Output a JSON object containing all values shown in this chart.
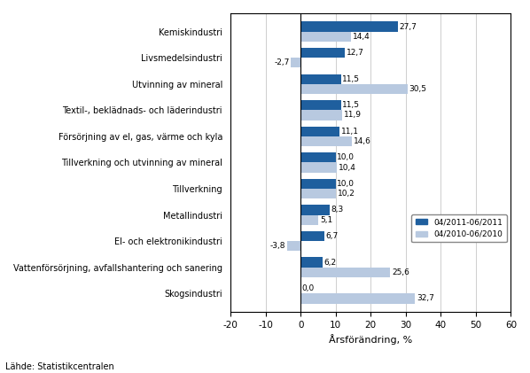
{
  "categories": [
    "Kemiskindustri",
    "Livsmedelsindustri",
    "Utvinning av mineral",
    "Textil-, beklädnads- och läderindustri",
    "Försörjning av el, gas, värme och kyla",
    "Tillverkning och utvinning av mineral",
    "Tillverkning",
    "Metallindustri",
    "El- och elektronikindustri",
    "Vattenförsörjning, avfallshantering och sanering",
    "Skogsindustri"
  ],
  "values_2011": [
    27.7,
    12.7,
    11.5,
    11.5,
    11.1,
    10.0,
    10.0,
    8.3,
    6.7,
    6.2,
    0.0
  ],
  "values_2010": [
    14.4,
    -2.7,
    30.5,
    11.9,
    14.6,
    10.4,
    10.2,
    5.1,
    -3.8,
    25.6,
    32.7
  ],
  "color_2011": "#1F5F9E",
  "color_2010": "#B8C9E0",
  "legend_2011": "04/2011-06/2011",
  "legend_2010": "04/2010-06/2010",
  "xlabel": "Årsförändring, %",
  "source": "Lähde: Statistikcentralen",
  "xlim": [
    -20,
    60
  ],
  "xticks": [
    -20,
    -10,
    0,
    10,
    20,
    30,
    40,
    50,
    60
  ],
  "bar_height": 0.38,
  "figsize": [
    5.98,
    4.21
  ],
  "dpi": 100
}
